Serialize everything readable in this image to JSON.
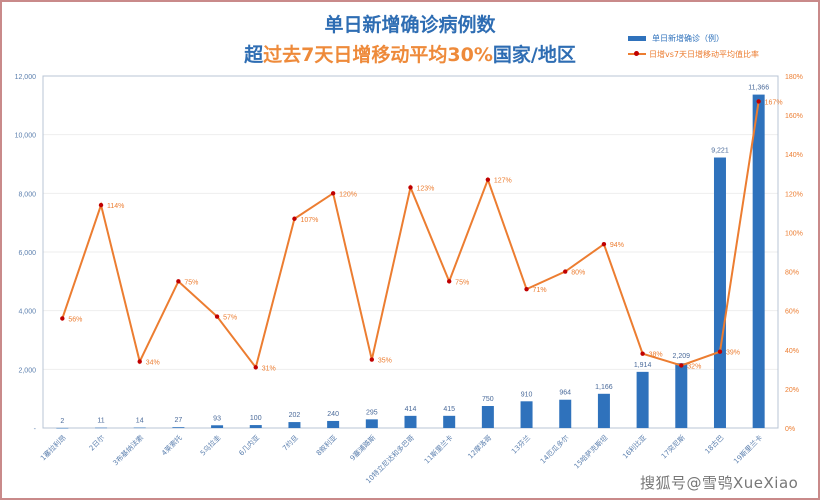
{
  "title": {
    "line1": "单日新增确诊病例数",
    "line2_prefix": "超",
    "line2_highlight": "过去7天日增移动平均30%",
    "line2_suffix": "国家/地区"
  },
  "legend": {
    "bar_label": "单日新增确诊（例）",
    "line_label": "日增vs7天日增移动平均值比率"
  },
  "watermark": "搜狐号@雪鸮XueXiao",
  "colors": {
    "bar": "#2f72bc",
    "line": "#ec7d31",
    "marker": "#c00000",
    "left_axis_text": "#5b7fae",
    "right_axis_text": "#ec7d31",
    "frame": "#c98a8a"
  },
  "chart_data": {
    "type": "bar+line",
    "title": "单日新增确诊病例数 超过去7天日增移动平均30%国家/地区",
    "categories": [
      "1塞拉利昂",
      "2日尔",
      "3布基纳法索",
      "4莱索托",
      "5乌拉圭",
      "6几内亚",
      "7约旦",
      "8叙利亚",
      "9塞浦路斯",
      "10特立尼达和多巴哥",
      "11斯里兰卡",
      "12摩洛哥",
      "13芬兰",
      "14厄瓜多尔",
      "15哈萨克斯坦",
      "16利比亚",
      "17突尼斯",
      "18古巴",
      "19斯里兰卡"
    ],
    "series": [
      {
        "name": "单日新增确诊（例）",
        "type": "bar",
        "axis": "left",
        "values": [
          2,
          11,
          14,
          27,
          93,
          100,
          202,
          240,
          295,
          414,
          415,
          750,
          910,
          964,
          1166,
          1914,
          2209,
          9221,
          11366
        ],
        "labels": [
          "2",
          "11",
          "14",
          "27",
          "93",
          "100",
          "202",
          "240",
          "295",
          "414",
          "415",
          "750",
          "910",
          "964",
          "1,166",
          "1,914",
          "2,209",
          "9,221",
          "11,366"
        ]
      },
      {
        "name": "日增vs7天日增移动平均值比率",
        "type": "line",
        "axis": "right",
        "values": [
          56,
          114,
          34,
          75,
          57,
          31,
          107,
          120,
          35,
          123,
          75,
          127,
          71,
          80,
          94,
          38,
          32,
          39,
          167
        ],
        "labels": [
          "56%",
          "114%",
          "34%",
          "75%",
          "57%",
          "31%",
          "107%",
          "120%",
          "35%",
          "123%",
          "75%",
          "127%",
          "71%",
          "80%",
          "94%",
          "38%",
          "32%",
          "39%",
          "167%"
        ]
      }
    ],
    "left_axis": {
      "ylim": [
        0,
        12000
      ],
      "ticks": [
        "-",
        "2,000",
        "4,000",
        "6,000",
        "8,000",
        "10,000",
        "12,000"
      ]
    },
    "right_axis": {
      "ylim": [
        0,
        180
      ],
      "ticks": [
        "0%",
        "20%",
        "40%",
        "60%",
        "80%",
        "100%",
        "120%",
        "140%",
        "160%",
        "180%"
      ]
    },
    "grid": true,
    "legend_position": "top-right"
  }
}
